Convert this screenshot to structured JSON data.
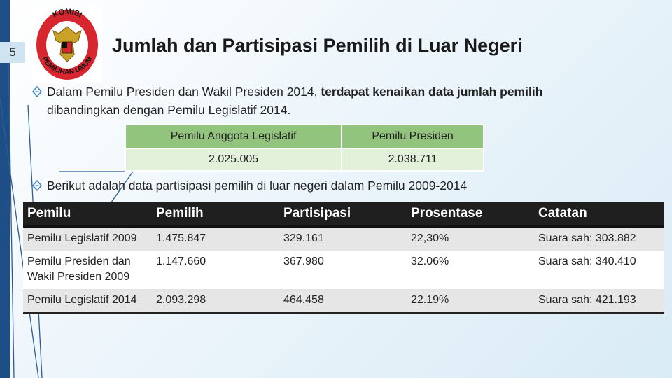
{
  "slide": {
    "number": "5",
    "title": "Jumlah dan Partisipasi Pemilih di Luar Negeri"
  },
  "logo": {
    "top_text": "KOMISI",
    "bottom_text": "PEMILIHAN UMUM"
  },
  "bullets": {
    "first_plain": "Dalam Pemilu Presiden dan Wakil Presiden 2014, ",
    "first_bold": "terdapat kenaikan data jumlah pemilih",
    "first_plain_end": " dibandingkan dengan Pemilu Legislatif 2014.",
    "second": "Berikut adalah data partisipasi pemilih di luar negeri dalam Pemilu 2009-2014"
  },
  "comparison": {
    "headers": [
      "Pemilu Anggota Legislatif",
      "Pemilu Presiden"
    ],
    "values": [
      "2.025.005",
      "2.038.711"
    ]
  },
  "table": {
    "headers": [
      "Pemilu",
      "Pemilih",
      "Partisipasi",
      "Prosentase",
      "Catatan"
    ],
    "rows": [
      [
        "Pemilu Legislatif 2009",
        "1.475.847",
        "329.161",
        "22,30%",
        "Suara sah: 303.882"
      ],
      [
        "Pemilu Presiden dan Wakil Presiden 2009",
        "1.147.660",
        "367.980",
        "32.06%",
        "Suara sah: 340.410"
      ],
      [
        "Pemilu Legislatif 2014",
        "2.093.298",
        "464.458",
        "22.19%",
        "Suara sah: 421.193"
      ]
    ]
  },
  "colors": {
    "accent": "#1d4f86",
    "table_header": "#1f1f1f",
    "compare_header": "#93c47d",
    "compare_cell": "#e3f0da",
    "logo_red": "#d7262e"
  },
  "icons": {
    "bullet": "diamond-outline-icon",
    "logo": "kpu-emblem-icon"
  }
}
